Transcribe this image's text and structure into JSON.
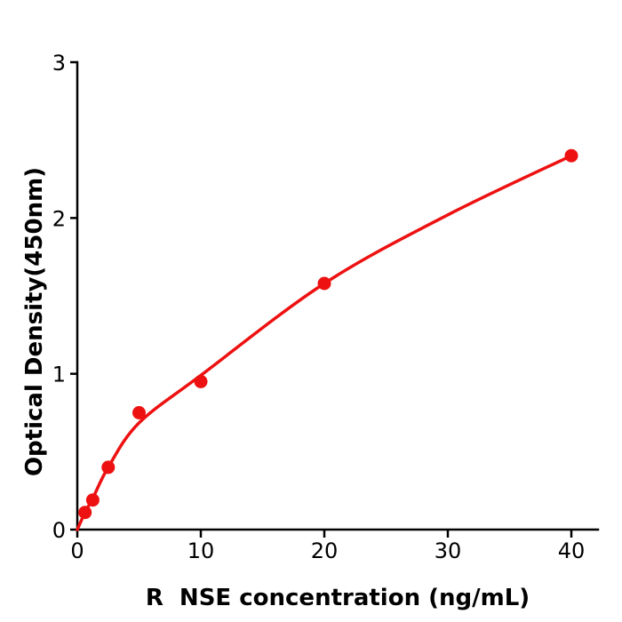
{
  "figure": {
    "background_color": "#ffffff",
    "axis_color": "#000000"
  },
  "chart_data": {
    "type": "scatter",
    "title": "",
    "xlabel": "R  NSE concentration (ng/mL)",
    "ylabel": "Optical Density(450nm)",
    "series": [
      {
        "name": "standard-curve-points",
        "x": [
          0.625,
          1.25,
          2.5,
          5,
          10,
          20,
          40
        ],
        "y": [
          0.11,
          0.19,
          0.4,
          0.75,
          0.95,
          1.58,
          2.4
        ]
      }
    ],
    "fit_curve": [
      [
        0,
        0
      ],
      [
        0.625,
        0.11
      ],
      [
        1.25,
        0.2
      ],
      [
        2.5,
        0.4
      ],
      [
        5,
        0.685
      ],
      [
        10,
        0.99
      ],
      [
        20,
        1.58
      ],
      [
        30,
        2.02
      ],
      [
        40,
        2.4
      ]
    ],
    "x_ticks": [
      0,
      10,
      20,
      30,
      40
    ],
    "y_ticks": [
      0,
      1,
      2,
      3
    ],
    "xlim": [
      0,
      42.2
    ],
    "ylim": [
      0,
      3
    ],
    "grid": false,
    "legend": false,
    "marker_color": "#ee1111",
    "line_color": "#ee1111",
    "axis_color": "#000000"
  }
}
